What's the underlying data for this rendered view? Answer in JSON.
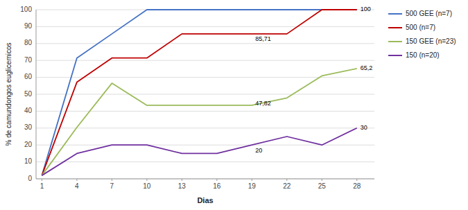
{
  "chart_data": {
    "type": "line",
    "x": [
      1,
      4,
      7,
      10,
      13,
      16,
      19,
      22,
      25,
      28
    ],
    "series": [
      {
        "name": "500 GEE (n=7)",
        "color": "#4472C4",
        "values": [
          2,
          71.43,
          85.71,
          100,
          100,
          100,
          100,
          100,
          100,
          100
        ]
      },
      {
        "name": "500 (n=7)",
        "color": "#C00000",
        "values": [
          2,
          57.14,
          71.43,
          71.43,
          85.71,
          85.71,
          85.71,
          85.71,
          100,
          100
        ]
      },
      {
        "name": "150 GEE (n=23)",
        "color": "#9BBB59",
        "values": [
          2,
          30.43,
          56.52,
          43.48,
          43.48,
          43.48,
          43.48,
          47.82,
          60.87,
          65.2
        ]
      },
      {
        "name": "150 (n=20)",
        "color": "#7030A0",
        "values": [
          2,
          15,
          20,
          20,
          15,
          15,
          20,
          25,
          20,
          30
        ]
      }
    ],
    "annotations": [
      {
        "text": "100",
        "x": 28,
        "y": 100
      },
      {
        "text": "85,71",
        "x": 19,
        "y": 85.71
      },
      {
        "text": "65,2",
        "x": 28,
        "y": 65.2
      },
      {
        "text": "47,82",
        "x": 19,
        "y": 47.82
      },
      {
        "text": "20",
        "x": 19,
        "y": 20
      },
      {
        "text": "30",
        "x": 28,
        "y": 30
      }
    ],
    "xlabel": "Dias",
    "ylabel": "% de camundongos euglicemicos",
    "xlim": [
      0.5,
      29.5
    ],
    "xticks": [
      1,
      4,
      7,
      10,
      13,
      16,
      19,
      22,
      25,
      28
    ],
    "ylim": [
      0,
      100
    ],
    "yticks": [
      0,
      10,
      20,
      30,
      40,
      50,
      60,
      70,
      80,
      90,
      100
    ],
    "grid": true,
    "legend": "right"
  }
}
